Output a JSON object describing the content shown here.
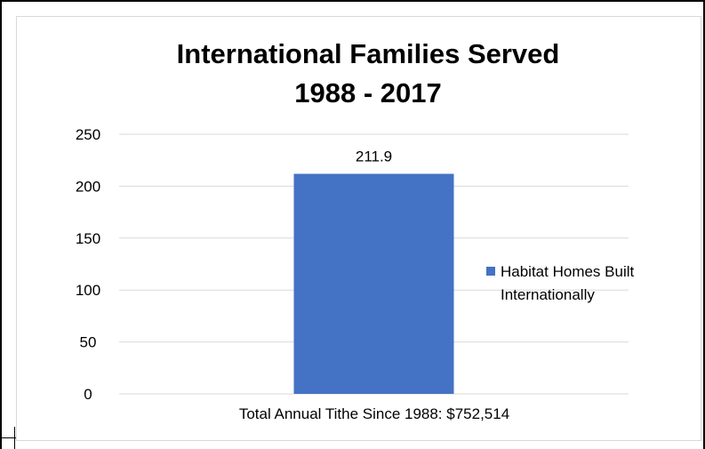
{
  "chart_data": {
    "type": "bar",
    "title_line1": "International Families Served",
    "title_line2": "1988 - 2017",
    "categories": [
      "Total Annual Tithe Since 1988: $752,514"
    ],
    "series": [
      {
        "name": "Habitat Homes Built Internationally",
        "values": [
          211.9
        ],
        "color": "#4472c4"
      }
    ],
    "data_labels": [
      "211.9"
    ],
    "ylim": [
      0,
      250
    ],
    "yticks": [
      0,
      50,
      100,
      150,
      200,
      250
    ],
    "grid": true,
    "legend_position": "right"
  }
}
